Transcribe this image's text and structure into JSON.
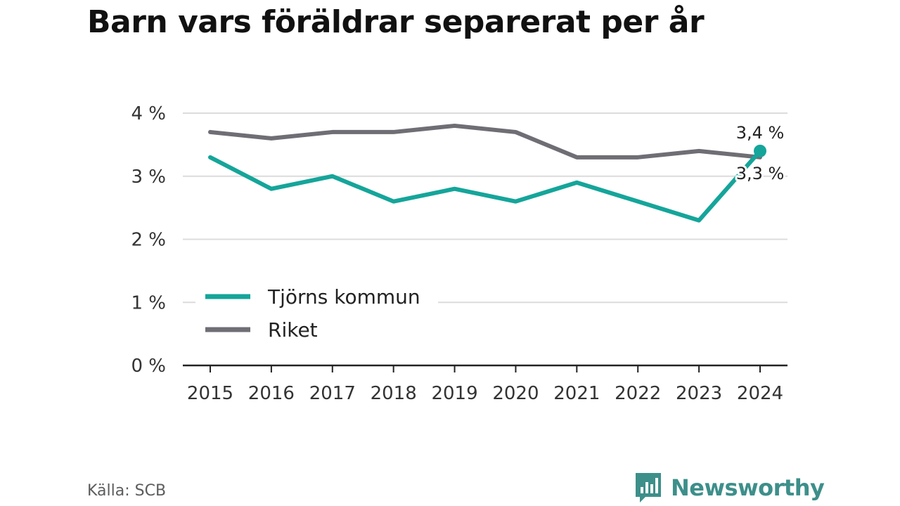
{
  "title": "Barn vars föräldrar separerat per år",
  "source": "Källa: SCB",
  "brand": {
    "name": "Newsworthy",
    "logo_icon": "bar-chart-speech-bubble-icon",
    "color": "#3d8f8a"
  },
  "chart_data": {
    "type": "line",
    "title": "Barn vars föräldrar separerat per år",
    "x": [
      "2015",
      "2016",
      "2017",
      "2018",
      "2019",
      "2020",
      "2021",
      "2022",
      "2023",
      "2024"
    ],
    "ylim": [
      0,
      4
    ],
    "yticks": [
      0,
      1,
      2,
      3,
      4
    ],
    "ytick_labels": [
      "0 %",
      "1 %",
      "2 %",
      "3 %",
      "4 %"
    ],
    "grid": true,
    "legend_position": "bottom-left",
    "series": [
      {
        "name": "Tjörns kommun",
        "color": "#15a59a",
        "values": [
          3.3,
          2.8,
          3.0,
          2.6,
          2.8,
          2.6,
          2.9,
          2.6,
          2.3,
          3.4
        ],
        "end_label": "3,4 %"
      },
      {
        "name": "Riket",
        "color": "#6f6e74",
        "values": [
          3.7,
          3.6,
          3.7,
          3.7,
          3.8,
          3.7,
          3.3,
          3.3,
          3.4,
          3.3
        ],
        "end_label": "3,3 %"
      }
    ]
  }
}
